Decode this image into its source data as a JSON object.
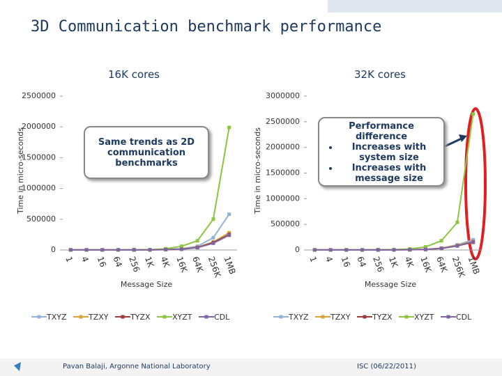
{
  "slide": {
    "title": "3D Communication benchmark performance",
    "footer_left": "Pavan Balaji, Argonne National Laboratory",
    "footer_right": "ISC (06/22/2011)"
  },
  "chart_data": [
    {
      "type": "line",
      "title": "16K cores",
      "xlabel": "Message Size",
      "ylabel": "Time in micro-seconds",
      "categories": [
        "1",
        "4",
        "16",
        "64",
        "256",
        "1K",
        "4K",
        "16K",
        "64K",
        "256K",
        "1MB"
      ],
      "ylim": [
        0,
        2500000
      ],
      "yticks": [
        0,
        500000,
        1000000,
        1500000,
        2000000,
        2500000
      ],
      "annotation": "Same trends as 2D communication benchmarks",
      "series": [
        {
          "name": "TXYZ",
          "color": "#95b3d7",
          "values": [
            1000,
            1000,
            1000,
            1000,
            2000,
            3000,
            8000,
            20000,
            60000,
            200000,
            580000
          ]
        },
        {
          "name": "TZXY",
          "color": "#d8a43a",
          "values": [
            1000,
            1000,
            1000,
            1000,
            2000,
            3000,
            7000,
            15000,
            45000,
            130000,
            280000
          ]
        },
        {
          "name": "TYZX",
          "color": "#9b3b3b",
          "values": [
            1000,
            1000,
            1000,
            1000,
            2000,
            3000,
            6000,
            14000,
            40000,
            120000,
            250000
          ]
        },
        {
          "name": "XYZT",
          "color": "#8cc63f",
          "values": [
            1000,
            1000,
            1000,
            2000,
            3000,
            6000,
            20000,
            60000,
            150000,
            500000,
            1990000
          ]
        },
        {
          "name": "CDL",
          "color": "#8064a2",
          "values": [
            1000,
            1000,
            1000,
            1000,
            2000,
            3000,
            6000,
            13000,
            38000,
            110000,
            240000
          ]
        }
      ]
    },
    {
      "type": "line",
      "title": "32K cores",
      "xlabel": "Message Size",
      "ylabel": "Time in micro-seconds",
      "categories": [
        "1",
        "4",
        "16",
        "64",
        "256",
        "1K",
        "4K",
        "16K",
        "64K",
        "256K",
        "1MB"
      ],
      "ylim": [
        0,
        3000000
      ],
      "yticks": [
        0,
        500000,
        1000000,
        1500000,
        2000000,
        2500000,
        3000000
      ],
      "annotation_title": "Performance difference",
      "annotation_items": [
        "Increases with system size",
        "Increases with message size"
      ],
      "series": [
        {
          "name": "TXYZ",
          "color": "#95b3d7",
          "values": [
            1000,
            1000,
            1000,
            1000,
            2000,
            3000,
            6000,
            12000,
            35000,
            100000,
            200000
          ]
        },
        {
          "name": "TZXY",
          "color": "#d8a43a",
          "values": [
            1000,
            1000,
            1000,
            1000,
            2000,
            3000,
            6000,
            12000,
            35000,
            90000,
            170000
          ]
        },
        {
          "name": "TYZX",
          "color": "#9b3b3b",
          "values": [
            1000,
            1000,
            1000,
            1000,
            2000,
            3000,
            5000,
            11000,
            30000,
            80000,
            150000
          ]
        },
        {
          "name": "XYZT",
          "color": "#8cc63f",
          "values": [
            1000,
            1000,
            1000,
            2000,
            4000,
            8000,
            20000,
            60000,
            180000,
            540000,
            2650000
          ]
        },
        {
          "name": "CDL",
          "color": "#8064a2",
          "values": [
            1000,
            1000,
            1000,
            1000,
            2000,
            3000,
            5000,
            11000,
            30000,
            80000,
            160000
          ]
        }
      ]
    }
  ]
}
